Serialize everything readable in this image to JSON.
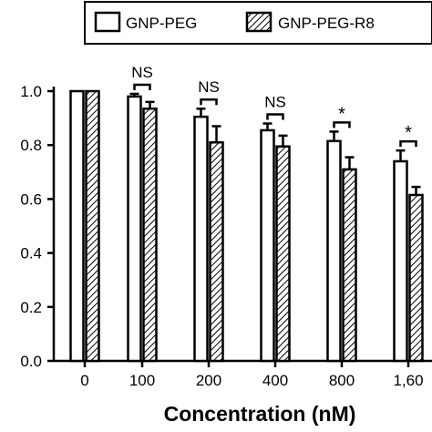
{
  "chart_data": {
    "type": "bar",
    "categories": [
      "0",
      "100",
      "200",
      "400",
      "800",
      "1,60"
    ],
    "series": [
      {
        "name": "GNP-PEG",
        "values": [
          1.0,
          0.98,
          0.905,
          0.855,
          0.815,
          0.74
        ],
        "errors": [
          0.0,
          0.01,
          0.03,
          0.025,
          0.035,
          0.04
        ],
        "fill": "white"
      },
      {
        "name": "GNP-PEG-R8",
        "values": [
          1.0,
          0.935,
          0.81,
          0.795,
          0.71,
          0.615
        ],
        "errors": [
          0.0,
          0.025,
          0.06,
          0.04,
          0.045,
          0.03
        ],
        "fill": "hatched"
      }
    ],
    "significance": [
      "",
      "NS",
      "NS",
      "NS",
      "*",
      "*"
    ],
    "xlabel": "Concentration (nM)",
    "ylabel": "",
    "ylim": [
      0,
      1.0
    ],
    "yticks": [
      "0.0",
      "0.2",
      "0.4",
      "0.6",
      "0.8",
      "1.0"
    ],
    "legend_position": "top",
    "grid": false
  }
}
